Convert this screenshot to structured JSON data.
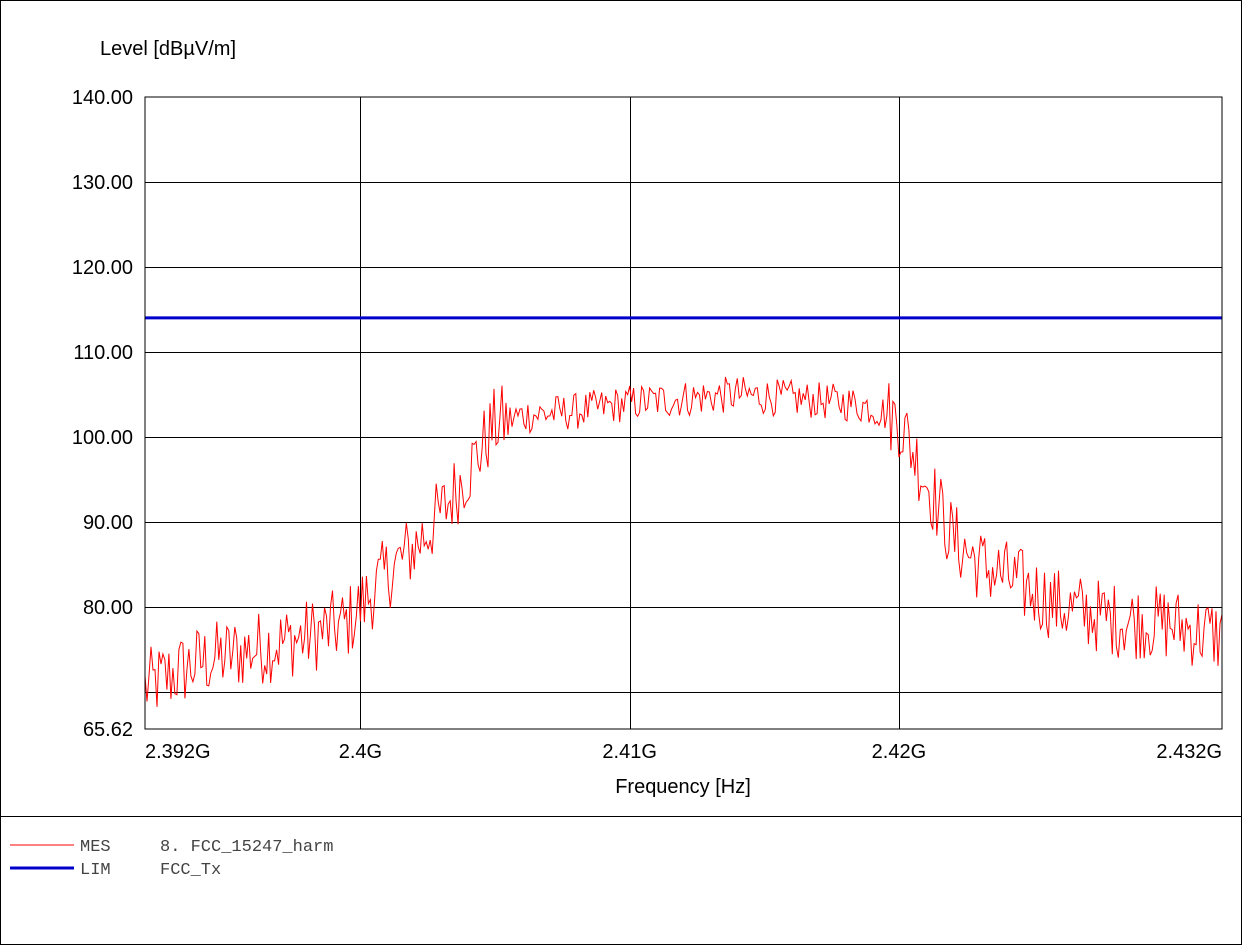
{
  "chart_data": {
    "type": "line",
    "ylabel": "Level [dBµV/m]",
    "xlabel": "Frequency [Hz]",
    "xlim": [
      2.392,
      2.432
    ],
    "ylim": [
      65.62,
      140.0
    ],
    "y_ticks": [
      {
        "value": 140.0,
        "label": "140.00"
      },
      {
        "value": 130.0,
        "label": "130.00"
      },
      {
        "value": 120.0,
        "label": "120.00"
      },
      {
        "value": 110.0,
        "label": "110.00"
      },
      {
        "value": 100.0,
        "label": "100.00"
      },
      {
        "value": 90.0,
        "label": "90.00"
      },
      {
        "value": 80.0,
        "label": "80.00"
      },
      {
        "value": 65.62,
        "label": "65.62"
      }
    ],
    "y_extra_gridline": 70.0,
    "x_ticks": [
      {
        "value": 2.392,
        "label": "2.392G"
      },
      {
        "value": 2.4,
        "label": "2.4G"
      },
      {
        "value": 2.41,
        "label": "2.41G"
      },
      {
        "value": 2.42,
        "label": "2.42G"
      },
      {
        "value": 2.432,
        "label": "2.432G"
      }
    ],
    "x_unit": "GHz",
    "grid": true,
    "series": [
      {
        "name": "MES 8. FCC_15247_harm",
        "color": "#ff0000",
        "x": [
          2.392,
          2.394,
          2.396,
          2.398,
          2.3995,
          2.4,
          2.401,
          2.402,
          2.403,
          2.404,
          2.405,
          2.406,
          2.408,
          2.41,
          2.412,
          2.414,
          2.416,
          2.418,
          2.419,
          2.42,
          2.421,
          2.422,
          2.423,
          2.424,
          2.426,
          2.428,
          2.43,
          2.432
        ],
        "values": [
          70.5,
          73.5,
          75.0,
          76.5,
          78.0,
          80.0,
          84.0,
          87.0,
          91.0,
          96.0,
          101.5,
          102.5,
          103.0,
          104.0,
          104.5,
          105.0,
          104.5,
          104.0,
          103.5,
          102.0,
          95.0,
          88.0,
          85.0,
          83.5,
          80.0,
          78.5,
          78.0,
          76.5
        ]
      },
      {
        "name": "LIM FCC_Tx",
        "color": "#0000cc",
        "x": [
          2.392,
          2.432
        ],
        "values": [
          114.0,
          114.0
        ]
      }
    ]
  },
  "legend": {
    "items": [
      {
        "type": "MES",
        "label": "8. FCC_15247_harm",
        "color": "#ff0000"
      },
      {
        "type": "LIM",
        "label": "FCC_Tx",
        "color": "#0000cc"
      }
    ]
  }
}
